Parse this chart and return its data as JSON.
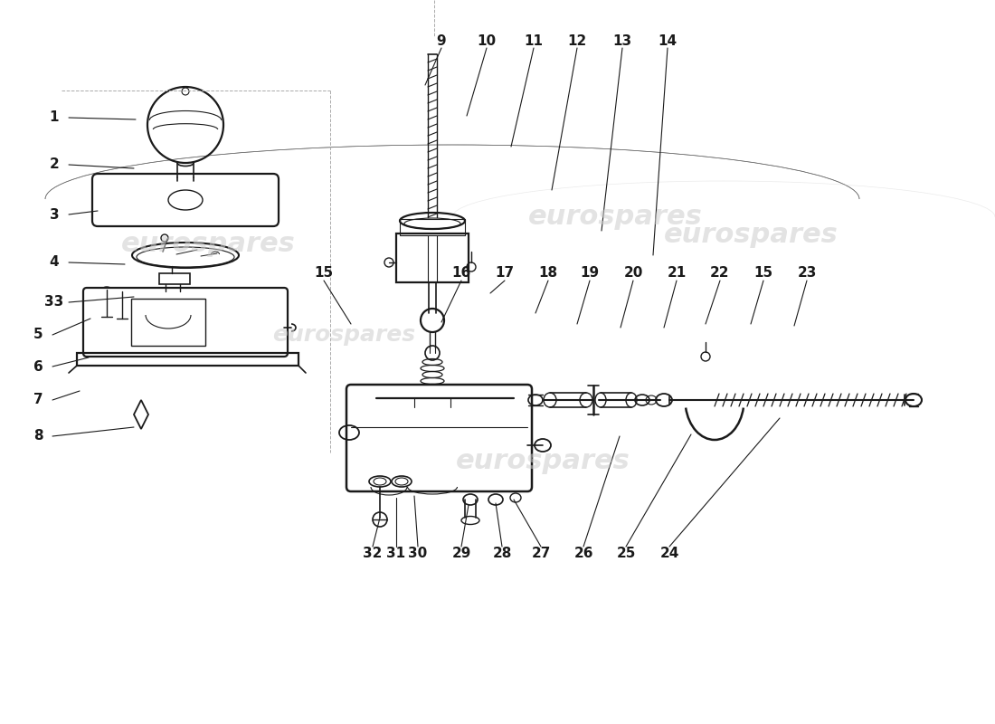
{
  "background_color": "#ffffff",
  "line_color": "#1a1a1a",
  "watermark_color": "#cccccc",
  "left_labels": [
    [
      "1",
      60,
      670,
      150,
      668
    ],
    [
      "2",
      60,
      618,
      148,
      614
    ],
    [
      "3",
      60,
      563,
      108,
      567
    ],
    [
      "4",
      60,
      510,
      138,
      508
    ],
    [
      "33",
      60,
      466,
      148,
      472
    ],
    [
      "5",
      42,
      430,
      100,
      448
    ],
    [
      "6",
      42,
      395,
      98,
      405
    ],
    [
      "7",
      42,
      358,
      88,
      368
    ],
    [
      "8",
      42,
      318,
      148,
      328
    ]
  ],
  "top_labels": [
    [
      "9",
      488,
      755,
      470,
      706
    ],
    [
      "10",
      538,
      755,
      516,
      672
    ],
    [
      "11",
      590,
      755,
      565,
      638
    ],
    [
      "12",
      638,
      755,
      610,
      590
    ],
    [
      "13",
      688,
      755,
      665,
      545
    ],
    [
      "14",
      738,
      755,
      722,
      518
    ]
  ],
  "mid_labels": [
    [
      "15",
      358,
      498,
      388,
      442
    ],
    [
      "16",
      510,
      498,
      488,
      444
    ],
    [
      "17",
      558,
      498,
      542,
      476
    ],
    [
      "18",
      606,
      498,
      592,
      454
    ],
    [
      "19",
      652,
      498,
      638,
      442
    ],
    [
      "20",
      700,
      498,
      686,
      438
    ],
    [
      "21",
      748,
      498,
      734,
      438
    ],
    [
      "22",
      796,
      498,
      780,
      442
    ],
    [
      "15",
      844,
      498,
      830,
      442
    ],
    [
      "23",
      892,
      498,
      878,
      440
    ]
  ],
  "bot_labels": [
    [
      "32",
      412,
      188,
      420,
      228
    ],
    [
      "31",
      438,
      188,
      438,
      250
    ],
    [
      "30",
      462,
      188,
      458,
      252
    ],
    [
      "29",
      510,
      188,
      518,
      242
    ],
    [
      "28",
      555,
      188,
      548,
      244
    ],
    [
      "27",
      598,
      188,
      568,
      248
    ],
    [
      "26",
      645,
      188,
      685,
      318
    ],
    [
      "25",
      692,
      188,
      764,
      320
    ],
    [
      "24",
      740,
      188,
      862,
      338
    ]
  ]
}
